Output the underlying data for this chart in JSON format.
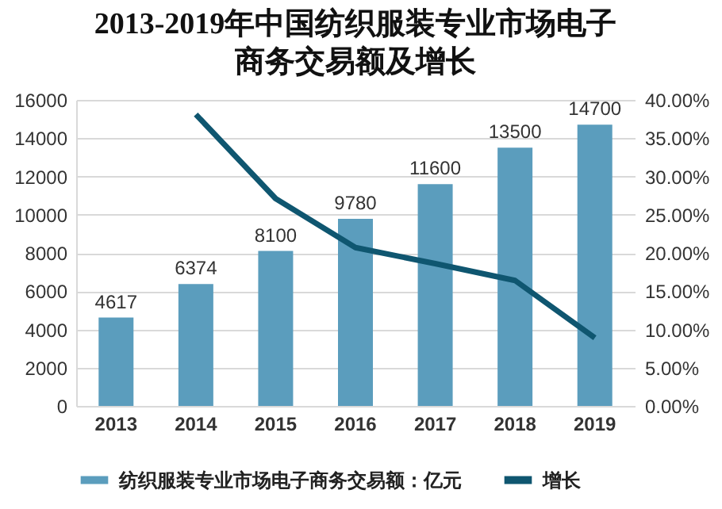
{
  "chart_data": {
    "type": "bar",
    "title": "2013-2019年中国纺织服装专业市场电子商务交易额及增长",
    "categories": [
      "2013",
      "2014",
      "2015",
      "2016",
      "2017",
      "2018",
      "2019"
    ],
    "series": [
      {
        "name": "纺织服装专业市场电子商务交易额：亿元",
        "color": "#5b9dbd",
        "values": [
          4617,
          6374,
          8100,
          9780,
          11600,
          13500,
          14700
        ],
        "value_labels": [
          "4617",
          "6374",
          "8100",
          "9780",
          "11600",
          "13500",
          "14700"
        ]
      },
      {
        "name": "增长",
        "type": "line",
        "axis": "y2",
        "color": "#0f5670",
        "values": [
          null,
          38.1,
          27.1,
          20.7,
          18.6,
          16.4,
          8.9
        ]
      }
    ],
    "ylim": [
      0,
      16000
    ],
    "yticks": [
      0,
      2000,
      4000,
      6000,
      8000,
      10000,
      12000,
      14000,
      16000
    ],
    "y2lim": [
      0,
      40
    ],
    "y2ticks": [
      {
        "value": 0,
        "label": "0.00%"
      },
      {
        "value": 5,
        "label": "5.00%"
      },
      {
        "value": 10,
        "label": "10.00%"
      },
      {
        "value": 15,
        "label": "15.00%"
      },
      {
        "value": 20,
        "label": "20.00%"
      },
      {
        "value": 25,
        "label": "25.00%"
      },
      {
        "value": 30,
        "label": "30.00%"
      },
      {
        "value": 35,
        "label": "35.00%"
      },
      {
        "value": 40,
        "label": "40.00%"
      }
    ],
    "grid": "y",
    "legend": "bottom"
  }
}
